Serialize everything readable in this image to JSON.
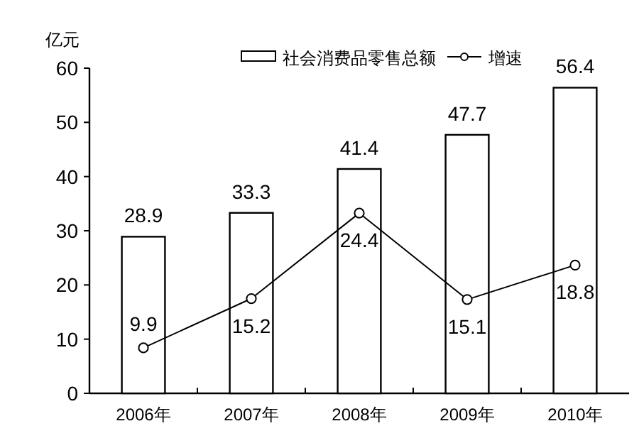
{
  "chart_data": {
    "type": "bar",
    "ylabel": "亿元",
    "categories": [
      "2006年",
      "2007年",
      "2008年",
      "2009年",
      "2010年"
    ],
    "series": [
      {
        "name": "社会消费品零售总额",
        "color": "#ffffff",
        "values": [
          28.9,
          33.3,
          41.4,
          47.7,
          56.4
        ]
      },
      {
        "name": "增速",
        "type": "line",
        "axis": "y2",
        "color": "#000000",
        "marker": "circle",
        "values": [
          9.9,
          15.2,
          24.4,
          15.1,
          18.8
        ]
      }
    ],
    "ylim": [
      0,
      60
    ],
    "yticks": [
      0,
      10,
      20,
      30,
      40,
      50,
      60
    ],
    "y2lim": [
      5,
      40
    ],
    "data_labels": true,
    "legend": "top",
    "grid": false
  }
}
